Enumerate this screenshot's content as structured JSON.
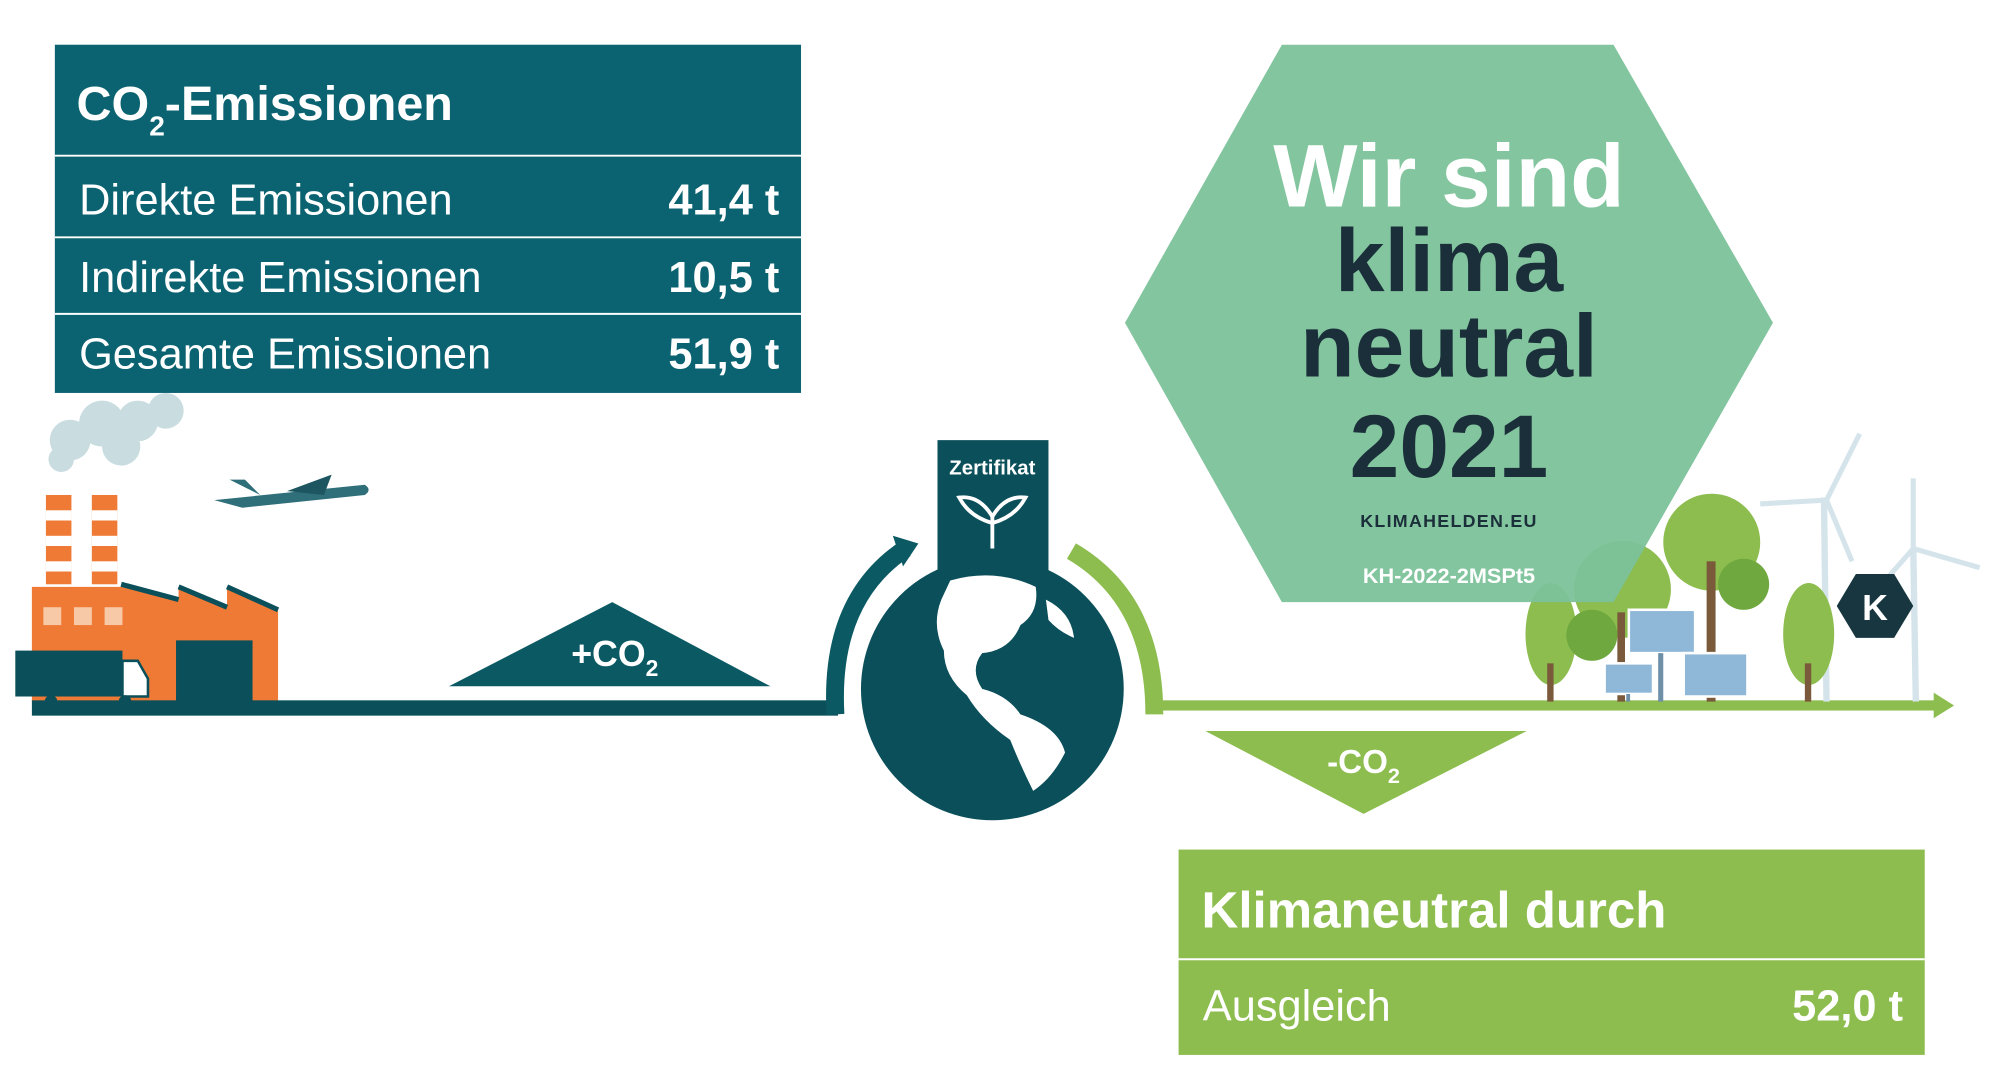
{
  "emissions": {
    "title_prefix": "CO",
    "title_sub": "2",
    "title_suffix": "-Emissionen",
    "rows": [
      {
        "label": "Direkte Emissionen",
        "value": "41,4 t"
      },
      {
        "label": "Indirekte Emissionen",
        "value": "10,5 t"
      },
      {
        "label": "Gesamte Emissionen",
        "value": "51,9 t"
      }
    ]
  },
  "flow": {
    "plus": "+CO",
    "plus_sub": "2",
    "minus": "-CO",
    "minus_sub": "2",
    "certificate": "Zertifikat"
  },
  "badge": {
    "line1": "Wir sind",
    "line2": "klima",
    "line3": "neutral",
    "year": "2021",
    "site": "KLIMAHELDEN.EU",
    "id": "KH-2022-2MSPt5",
    "logo": "K"
  },
  "offset": {
    "title": "Klimaneutral durch",
    "rows": [
      {
        "label": "Ausgleich",
        "value": "52,0 t"
      }
    ]
  }
}
